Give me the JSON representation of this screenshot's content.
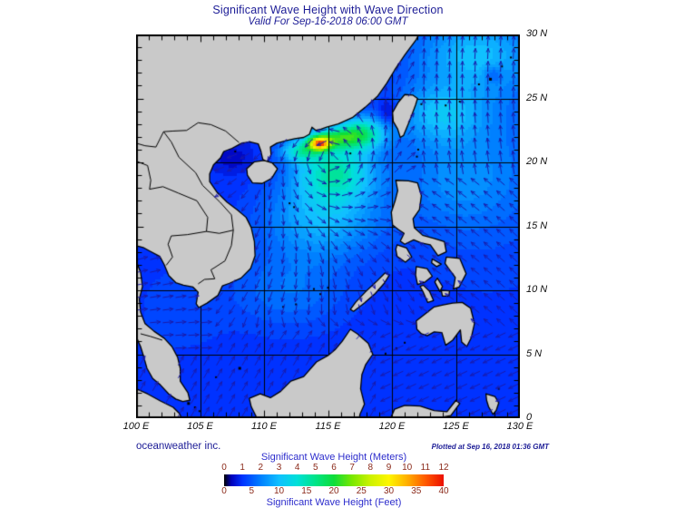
{
  "title": {
    "main": "Significant Wave Height with Wave Direction",
    "subtitle": "Valid For Sep-16-2018 06:00 GMT"
  },
  "map": {
    "x_axis_labels": [
      "100 E",
      "105 E",
      "110 E",
      "115 E",
      "120 E",
      "125 E",
      "130 E"
    ],
    "y_axis_labels": [
      "30 N",
      "25 N",
      "20 N",
      "15 N",
      "10 N",
      "5 N",
      "0"
    ],
    "lon_range": [
      100,
      130
    ],
    "lat_range": [
      0,
      30
    ],
    "grid_interval_deg": 5
  },
  "legend": {
    "meters_label": "Significant Wave Height (Meters)",
    "feet_label": "Significant Wave Height (Feet)",
    "meters_ticks": [
      "0",
      "1",
      "2",
      "3",
      "4",
      "5",
      "6",
      "7",
      "8",
      "9",
      "10",
      "11",
      "12"
    ],
    "feet_ticks": [
      "0",
      "5",
      "10",
      "15",
      "20",
      "25",
      "30",
      "35",
      "40"
    ]
  },
  "footer": {
    "credit": "oceanweather inc.",
    "plotted": "Plotted at Sep 16, 2018 01:36 GMT"
  },
  "colors": {
    "title_text": "#1c1c96",
    "axis_text": "#111111",
    "legend_label": "#2d2dcc",
    "legend_tick": "#8b2a1a",
    "land": "#c9c9c9",
    "coast": "#000000",
    "grid": "#000000",
    "arrow": "#1a1aaa",
    "ocean_scale": [
      [
        0,
        "#000000"
      ],
      [
        0.4,
        "#0000bb"
      ],
      [
        1,
        "#0032ff"
      ],
      [
        2,
        "#0080ff"
      ],
      [
        3,
        "#10c0ff"
      ],
      [
        4,
        "#00e0d8"
      ],
      [
        5,
        "#00e487"
      ],
      [
        6,
        "#0ddd3a"
      ],
      [
        7,
        "#7ae800"
      ],
      [
        8,
        "#cdf200"
      ],
      [
        9,
        "#fef600"
      ],
      [
        10,
        "#ffb000"
      ],
      [
        11,
        "#ff5a00"
      ],
      [
        12,
        "#ec0f00"
      ]
    ]
  },
  "chart_data": {
    "type": "heatmap",
    "field": "significant wave height with wave direction arrows",
    "colorbar_meters": [
      0,
      1,
      2,
      3,
      4,
      5,
      6,
      7,
      8,
      9,
      10,
      11,
      12
    ],
    "colorbar_feet": [
      0,
      5,
      10,
      15,
      20,
      25,
      30,
      35,
      40
    ],
    "depicted_peak": {
      "lon_deg_e": 114.4,
      "lat_deg_n": 21.4,
      "approx_height_m": 12
    },
    "region": "South China Sea and Western Pacific, 100E-130E, 0-30N"
  }
}
